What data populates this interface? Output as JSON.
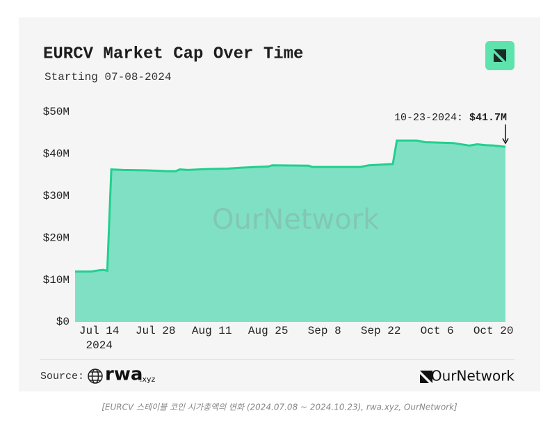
{
  "chart_data": {
    "type": "area",
    "title": "EURCV Market Cap Over Time",
    "subtitle": "Starting 07-08-2024",
    "watermark": "OurNetwork",
    "x": [
      "2024-07-08",
      "2024-07-12",
      "2024-07-14",
      "2024-07-15",
      "2024-07-16",
      "2024-07-17",
      "2024-07-20",
      "2024-07-26",
      "2024-07-31",
      "2024-08-02",
      "2024-08-03",
      "2024-08-05",
      "2024-08-10",
      "2024-08-15",
      "2024-08-18",
      "2024-08-22",
      "2024-08-25",
      "2024-08-26",
      "2024-09-04",
      "2024-09-05",
      "2024-09-15",
      "2024-09-17",
      "2024-09-19",
      "2024-09-25",
      "2024-09-26",
      "2024-10-01",
      "2024-10-03",
      "2024-10-10",
      "2024-10-14",
      "2024-10-16",
      "2024-10-18",
      "2024-10-20",
      "2024-10-23"
    ],
    "series": [
      {
        "name": "Market Cap",
        "color": "#22cf8f",
        "fill": "#7fe0c4",
        "values": [
          12.0,
          12.0,
          12.3,
          12.4,
          12.2,
          36.3,
          36.2,
          36.1,
          35.9,
          35.9,
          36.3,
          36.2,
          36.4,
          36.5,
          36.7,
          36.9,
          37.0,
          37.3,
          37.2,
          36.9,
          36.9,
          36.9,
          37.3,
          37.6,
          43.2,
          43.2,
          42.8,
          42.6,
          42.0,
          42.3,
          42.1,
          42.0,
          41.7
        ]
      }
    ],
    "xlim": [
      "2024-07-08",
      "2024-10-23"
    ],
    "xticks": [
      {
        "value": "2024-07-14",
        "label": "Jul 14",
        "year": "2024"
      },
      {
        "value": "2024-07-28",
        "label": "Jul 28"
      },
      {
        "value": "2024-08-11",
        "label": "Aug 11"
      },
      {
        "value": "2024-08-25",
        "label": "Aug 25"
      },
      {
        "value": "2024-09-08",
        "label": "Sep 8"
      },
      {
        "value": "2024-09-22",
        "label": "Sep 22"
      },
      {
        "value": "2024-10-06",
        "label": "Oct 6"
      },
      {
        "value": "2024-10-20",
        "label": "Oct 20"
      }
    ],
    "ylim": [
      0,
      50
    ],
    "yticks": [
      {
        "value": 0,
        "label": "$0"
      },
      {
        "value": 10,
        "label": "$10M"
      },
      {
        "value": 20,
        "label": "$20M"
      },
      {
        "value": 30,
        "label": "$30M"
      },
      {
        "value": 40,
        "label": "$40M"
      },
      {
        "value": 50,
        "label": "$50M"
      }
    ],
    "annotation": {
      "x": "2024-10-23",
      "date_label": "10-23-2024:",
      "value": 41.7,
      "value_label": "$41.7M"
    }
  },
  "footer": {
    "source_label": "Source:",
    "source_name": "rwa",
    "source_suffix": ".xyz",
    "brand": "OurNetwork"
  },
  "caption": "[EURCV 스테이블 코인 시가총액의 변화 (2024.07.08 ~ 2024.10.23), rwa.xyz, OurNetwork]"
}
